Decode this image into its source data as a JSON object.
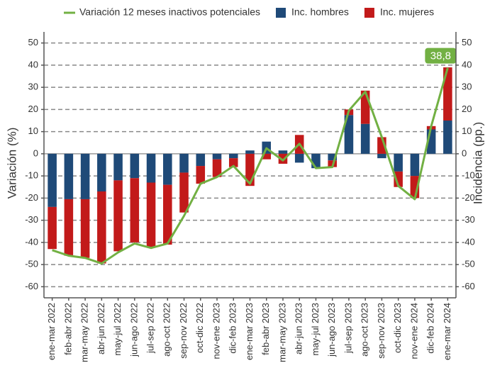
{
  "chart_data": {
    "type": "combo",
    "y_label": "Variación (%)",
    "y2_label": "Incidencia (pp.)",
    "categories": [
      "ene-mar 2022",
      "feb-abr 2022",
      "mar-may 2022",
      "abr-jun 2022",
      "may-jul 2022",
      "jun-ago 2022",
      "jul-sep 2022",
      "ago-oct 2022",
      "sep-nov 2022",
      "oct-dic 2022",
      "nov-ene 2023",
      "dic-feb 2023",
      "ene-mar 2023",
      "feb-abr 2023",
      "mar-may 2023",
      "abr-jun 2023",
      "may-jul 2023",
      "jun-ago 2023",
      "jul-sep 2023",
      "ago-oct 2023",
      "sep-nov 2023",
      "oct-dic 2023",
      "nov-ene 2024",
      "dic-feb 2024",
      "ene-mar 2024"
    ],
    "series": [
      {
        "name": "Variación 12 meses inactivos potenciales",
        "type": "line",
        "color": "#72b043",
        "values": [
          -43.5,
          -46,
          -47,
          -49.5,
          -44.5,
          -40.5,
          -42.5,
          -40.5,
          -28,
          -13.5,
          -10.5,
          -5.5,
          -13.5,
          2.5,
          -3,
          4.5,
          -6.5,
          -6,
          19.5,
          28,
          7.5,
          -14.5,
          -20.5,
          12.5,
          38.8
        ],
        "value_labels": [
          null,
          null,
          null,
          null,
          null,
          null,
          null,
          null,
          null,
          null,
          null,
          null,
          null,
          null,
          null,
          null,
          null,
          null,
          null,
          null,
          null,
          null,
          null,
          null,
          "38,8"
        ]
      },
      {
        "name": "Inc. hombres",
        "type": "bar",
        "axis": "y2",
        "color": "#1f4a78",
        "values": [
          -24,
          -20.5,
          -20.5,
          -17,
          -12,
          -11,
          -13,
          -14,
          -8.5,
          -5.5,
          -2.5,
          -2,
          1.5,
          5.5,
          1.5,
          -4,
          -6.5,
          -3,
          17.5,
          13.5,
          -2,
          -8,
          -10,
          11,
          15
        ]
      },
      {
        "name": "Inc. mujeres",
        "type": "bar",
        "axis": "y2",
        "color": "#c21a1a",
        "values": [
          -19,
          -25.5,
          -26.5,
          -32.5,
          -32,
          -29,
          -29,
          -27,
          -18,
          -8,
          -8,
          -4,
          -14.5,
          -2.5,
          -4.5,
          8.5,
          0,
          -3,
          2.5,
          15,
          7.5,
          -7,
          -10,
          1.5,
          24
        ]
      }
    ],
    "ylim": [
      -65,
      55
    ],
    "yticks": [
      -60,
      -50,
      -40,
      -30,
      -20,
      -10,
      0,
      10,
      20,
      30,
      40,
      50
    ],
    "y2lim": [
      -65,
      55
    ],
    "y2ticks": [
      -60,
      -50,
      -40,
      -30,
      -20,
      -10,
      0,
      10,
      20,
      30,
      40,
      50
    ],
    "grid": true,
    "legend": "top"
  }
}
